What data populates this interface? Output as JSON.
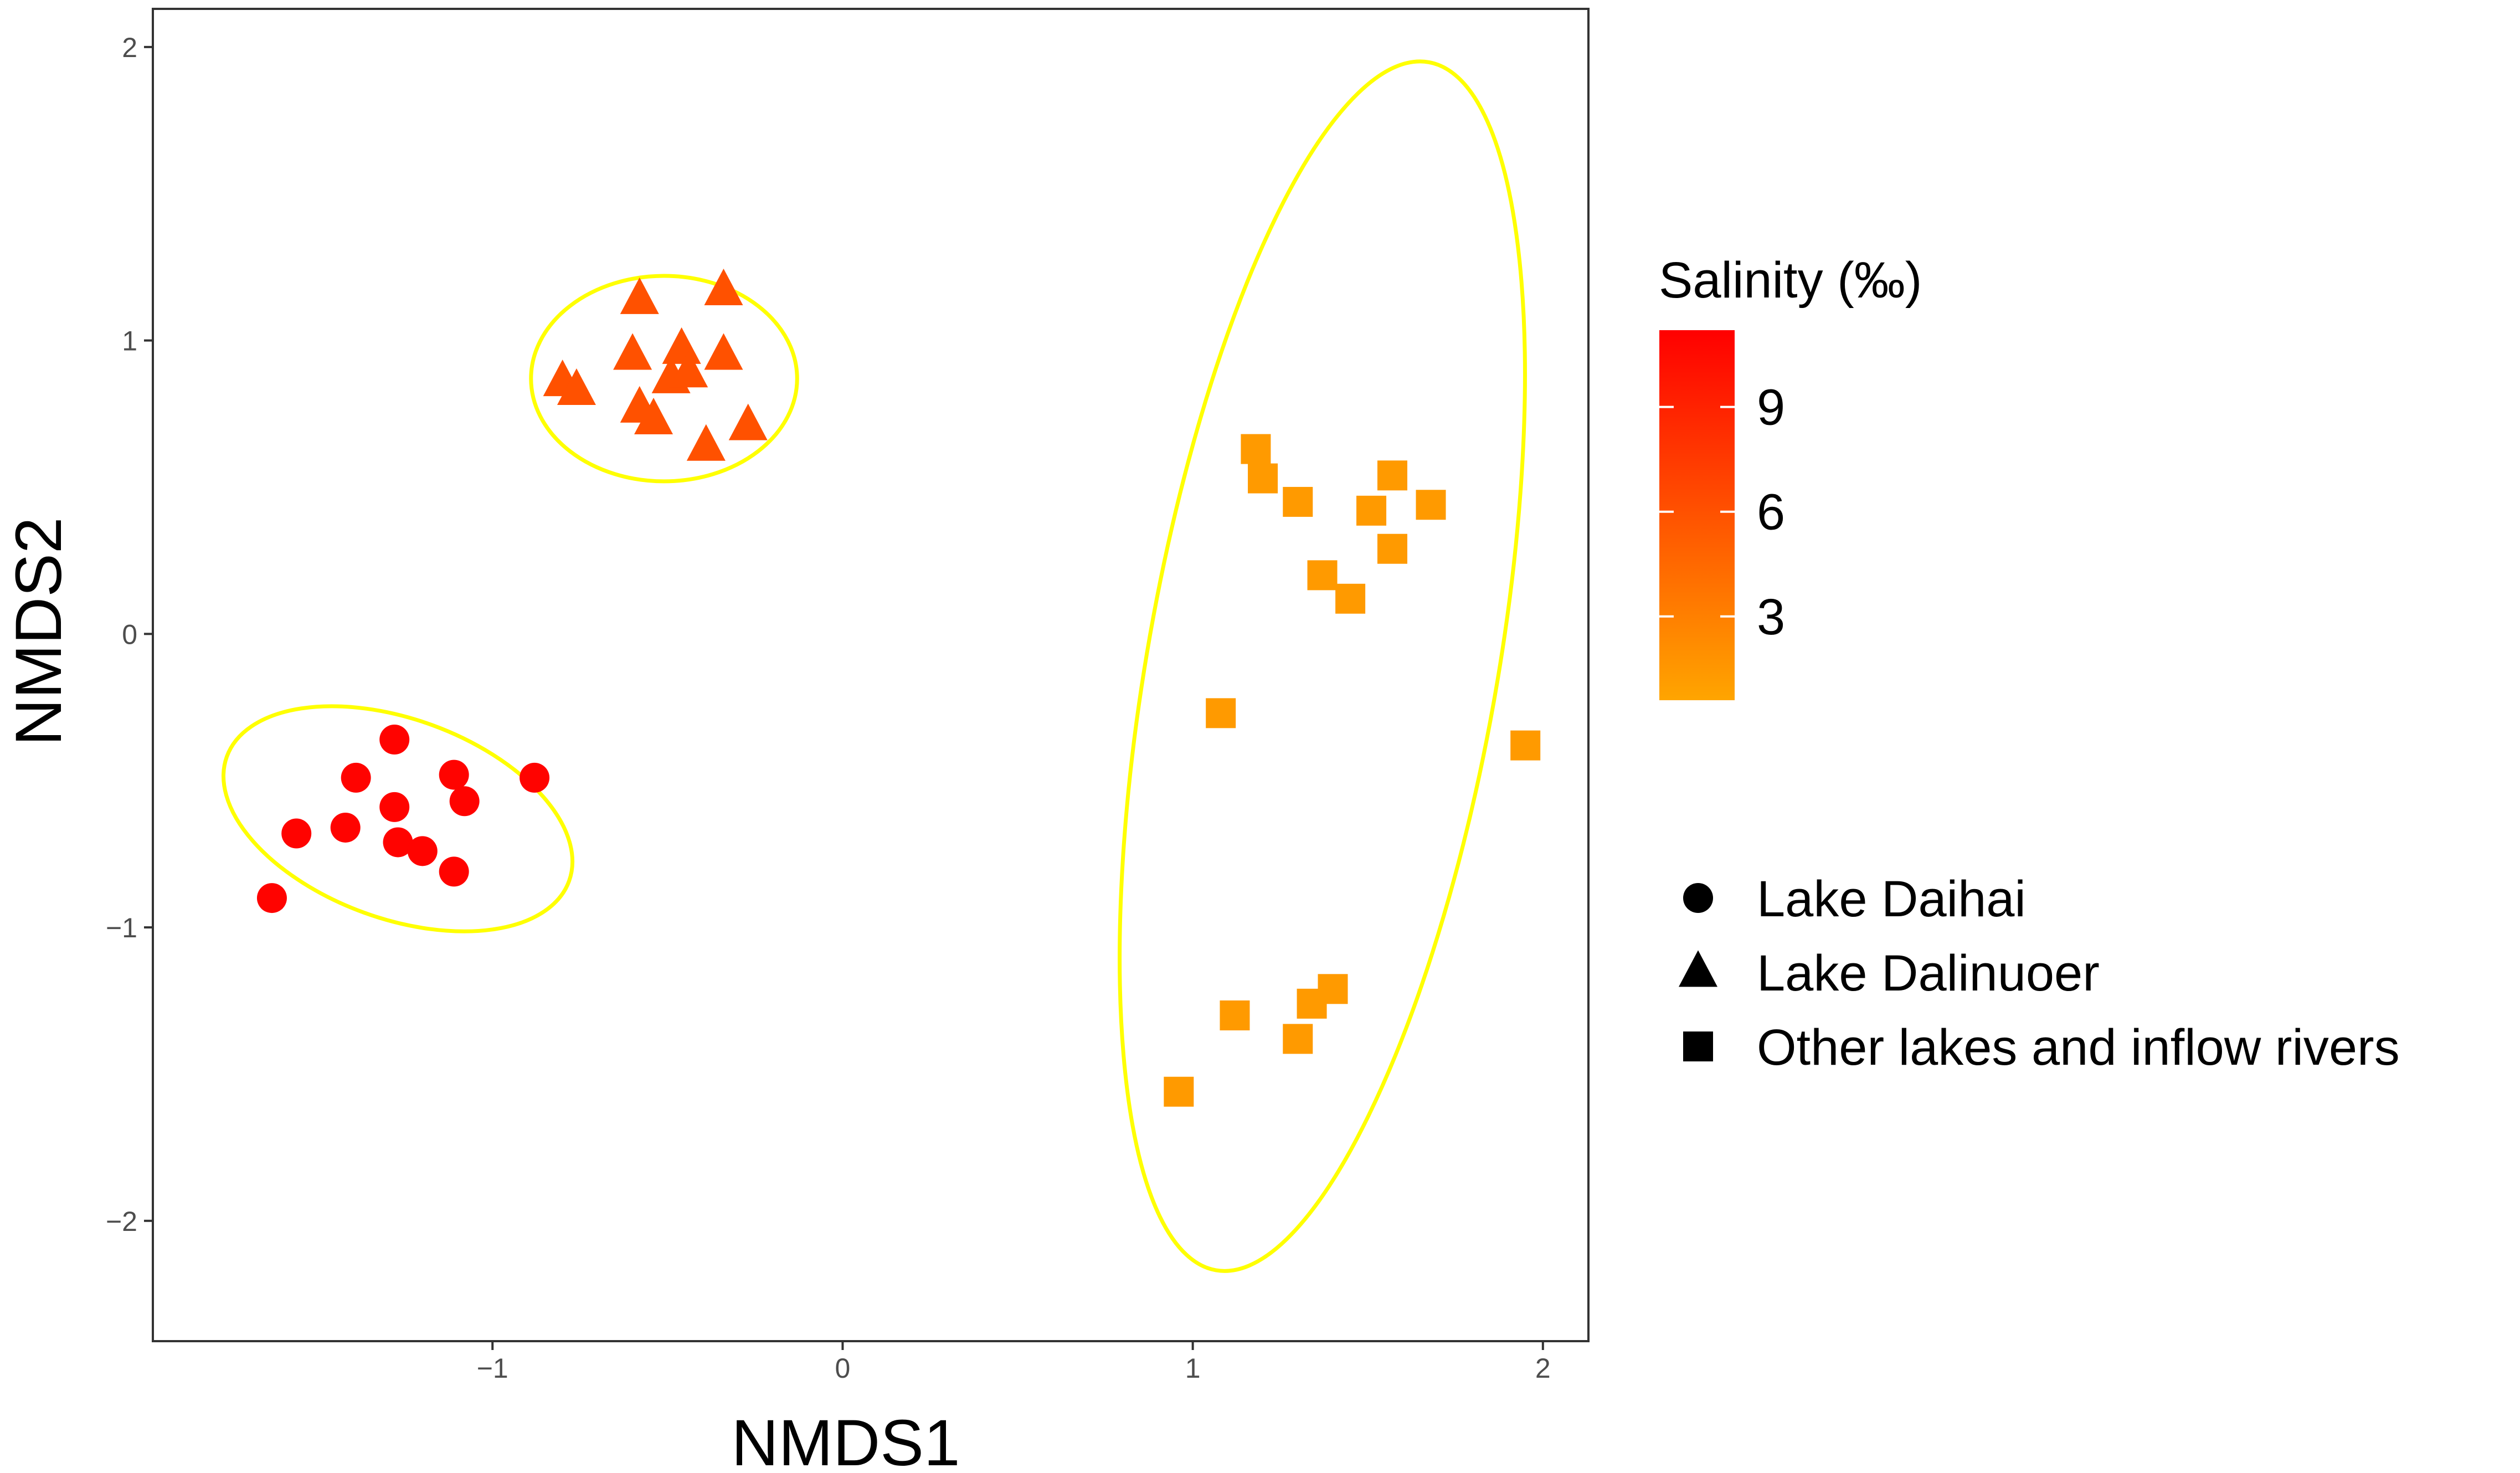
{
  "chart_data": {
    "type": "scatter",
    "title": "",
    "xlabel": "NMDS1",
    "ylabel": "NMDS2",
    "xlim": [
      -1.97,
      2.13
    ],
    "ylim": [
      -2.41,
      2.13
    ],
    "x_ticks": [
      -1,
      0,
      1,
      2
    ],
    "x_tick_labels": [
      "−1",
      "0",
      "1",
      "2"
    ],
    "y_ticks": [
      -2,
      -1,
      0,
      1,
      2
    ],
    "y_tick_labels": [
      "−2",
      "−1",
      "0",
      "1",
      "2"
    ],
    "grid": false,
    "legend_position": "right",
    "color_legend": {
      "title": "Salinity (‰)",
      "min": 0.6,
      "max": 11.2,
      "low_color": "#ffa500",
      "high_color": "#ff0000",
      "ticks": [
        3,
        6,
        9
      ],
      "tick_labels": [
        "3",
        "6",
        "9"
      ]
    },
    "shape_legend": [
      {
        "label": "Lake Daihai",
        "shape": "circle"
      },
      {
        "label": "Lake Dalinuoer",
        "shape": "triangle"
      },
      {
        "label": "Other lakes and inflow rivers",
        "shape": "square"
      }
    ],
    "series": [
      {
        "name": "Lake Daihai",
        "shape": "circle",
        "salinity": 11.0,
        "points": [
          {
            "x": -1.63,
            "y": -0.9
          },
          {
            "x": -1.56,
            "y": -0.68
          },
          {
            "x": -1.42,
            "y": -0.66
          },
          {
            "x": -1.39,
            "y": -0.49
          },
          {
            "x": -1.28,
            "y": -0.36
          },
          {
            "x": -1.28,
            "y": -0.59
          },
          {
            "x": -1.27,
            "y": -0.71
          },
          {
            "x": -1.2,
            "y": -0.74
          },
          {
            "x": -1.11,
            "y": -0.48
          },
          {
            "x": -1.11,
            "y": -0.81
          },
          {
            "x": -1.08,
            "y": -0.57
          },
          {
            "x": -0.88,
            "y": -0.49
          }
        ]
      },
      {
        "name": "Lake Dalinuoer",
        "shape": "triangle",
        "salinity": 6.0,
        "points": [
          {
            "x": -0.8,
            "y": 0.86
          },
          {
            "x": -0.76,
            "y": 0.83
          },
          {
            "x": -0.6,
            "y": 0.95
          },
          {
            "x": -0.58,
            "y": 1.14
          },
          {
            "x": -0.58,
            "y": 0.77
          },
          {
            "x": -0.54,
            "y": 0.73
          },
          {
            "x": -0.49,
            "y": 0.87
          },
          {
            "x": -0.46,
            "y": 0.97
          },
          {
            "x": -0.44,
            "y": 0.89
          },
          {
            "x": -0.39,
            "y": 0.64
          },
          {
            "x": -0.34,
            "y": 0.95
          },
          {
            "x": -0.34,
            "y": 1.17
          },
          {
            "x": -0.27,
            "y": 0.71
          }
        ]
      },
      {
        "name": "Other lakes and inflow rivers",
        "shape": "square",
        "salinity": 1.3,
        "points": [
          {
            "x": 0.96,
            "y": -1.56
          },
          {
            "x": 1.08,
            "y": -0.27
          },
          {
            "x": 1.12,
            "y": -1.3
          },
          {
            "x": 1.18,
            "y": 0.63
          },
          {
            "x": 1.2,
            "y": 0.53
          },
          {
            "x": 1.3,
            "y": 0.45
          },
          {
            "x": 1.3,
            "y": -1.38
          },
          {
            "x": 1.34,
            "y": -1.26
          },
          {
            "x": 1.37,
            "y": 0.2
          },
          {
            "x": 1.4,
            "y": -1.21
          },
          {
            "x": 1.45,
            "y": 0.12
          },
          {
            "x": 1.51,
            "y": 0.42
          },
          {
            "x": 1.57,
            "y": 0.54
          },
          {
            "x": 1.57,
            "y": 0.29
          },
          {
            "x": 1.68,
            "y": 0.44
          },
          {
            "x": 1.95,
            "y": -0.38
          }
        ]
      }
    ],
    "ellipses": [
      {
        "group": "Lake Daihai",
        "cx": -1.27,
        "cy": -0.63,
        "rx": 0.52,
        "ry": 0.34,
        "rotation_deg": 20,
        "color": "#ffff00"
      },
      {
        "group": "Lake Dalinuoer",
        "cx": -0.51,
        "cy": 0.87,
        "rx": 0.38,
        "ry": 0.35,
        "rotation_deg": 0,
        "color": "#ffff00"
      },
      {
        "group": "Other lakes and inflow rivers",
        "cx": 1.37,
        "cy": -0.11,
        "rx": 0.5,
        "ry": 2.09,
        "rotation_deg": 10,
        "color": "#ffff00"
      }
    ]
  }
}
